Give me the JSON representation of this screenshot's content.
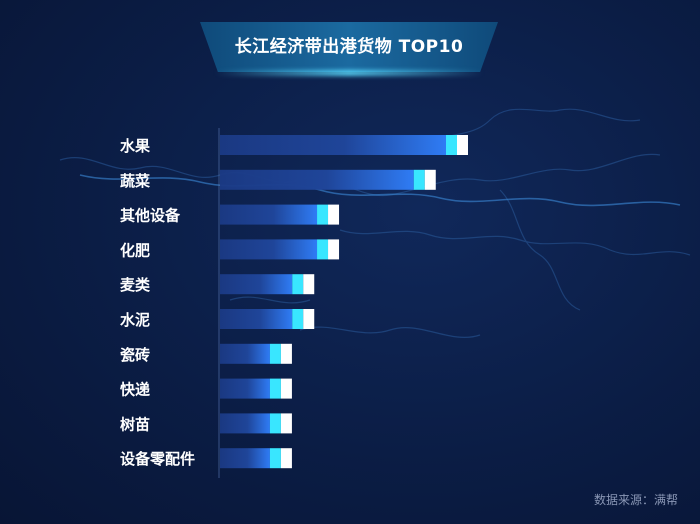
{
  "title": "长江经济带出港货物 TOP10",
  "source_note": "数据来源：满帮",
  "chart_data": {
    "type": "bar",
    "orientation": "horizontal",
    "title": "长江经济带出港货物 TOP10",
    "categories": [
      "水果",
      "蔬菜",
      "其他设备",
      "化肥",
      "麦类",
      "水泥",
      "瓷砖",
      "快递",
      "树苗",
      "设备零配件"
    ],
    "values": [
      100,
      87,
      48,
      48,
      38,
      38,
      29,
      29,
      29,
      29
    ],
    "xlim": [
      0,
      100
    ],
    "grid": false,
    "colors": {
      "bar_dark": "#1d3f8f",
      "bar_bright": "#2f7cf5",
      "bar_cyan": "#39e6ff",
      "bar_tip": "#ffffff",
      "label": "#ffffff"
    }
  }
}
